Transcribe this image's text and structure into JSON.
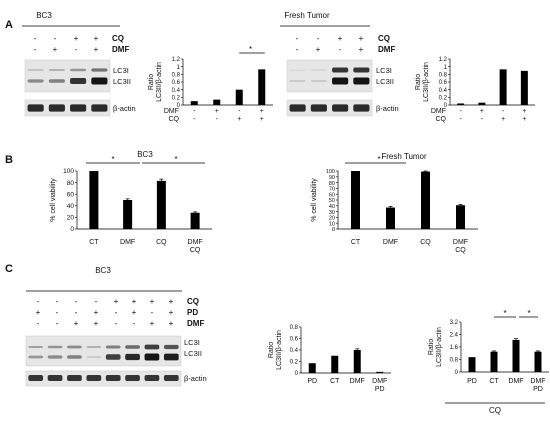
{
  "panels": [
    "A",
    "B",
    "C"
  ],
  "panel_A": {
    "left_title": "BC3",
    "right_title": "Fresh Tumor",
    "treat_rows": [
      {
        "label": "CQ",
        "signs": [
          "-",
          "-",
          "+",
          "+"
        ]
      },
      {
        "label": "DMF",
        "signs": [
          "-",
          "+",
          "-",
          "+"
        ]
      }
    ],
    "blot_labels": [
      "LC3I",
      "LC3II",
      "β-actin"
    ]
  },
  "panel_C": {
    "title": "BC3",
    "treat_rows": [
      {
        "label": "CQ",
        "signs": [
          "-",
          "-",
          "-",
          "-",
          "+",
          "+",
          "+",
          "+"
        ]
      },
      {
        "label": "PD",
        "signs": [
          "+",
          "-",
          "-",
          "+",
          "-",
          "+",
          "-",
          "+"
        ]
      },
      {
        "label": "DMF",
        "signs": [
          "-",
          "-",
          "+",
          "+",
          "-",
          "-",
          "+",
          "+"
        ]
      }
    ],
    "blot_labels": [
      "LC3I",
      "LC3II",
      "β-actin"
    ],
    "cq_group_label": "CQ"
  },
  "chart_data": [
    {
      "id": "A_left_quant",
      "type": "bar",
      "ylabel": "Ratio\nLC3II/β-actin",
      "yticks": [
        "0",
        "0.2",
        "0.4",
        "0.6",
        "0.8",
        "1",
        "1.2"
      ],
      "ylim": [
        0,
        1.2
      ],
      "values": [
        0.1,
        0.14,
        0.4,
        0.93
      ],
      "row_labels": [
        "DMF",
        "CQ"
      ],
      "row_signs": [
        [
          "-",
          "+",
          "-",
          "+"
        ],
        [
          "-",
          "-",
          "+",
          "+"
        ]
      ],
      "significance": "*"
    },
    {
      "id": "A_right_quant",
      "type": "bar",
      "ylabel": "Ratio\nLC3II/β-actin",
      "yticks": [
        "0",
        "0.2",
        "0.4",
        "0.6",
        "0.8",
        "1",
        "1.2"
      ],
      "ylim": [
        0,
        1.2
      ],
      "values": [
        0.04,
        0.06,
        0.93,
        0.89
      ],
      "row_labels": [
        "DMF",
        "CQ"
      ],
      "row_signs": [
        [
          "-",
          "+",
          "-",
          "+"
        ],
        [
          "-",
          "-",
          "+",
          "+"
        ]
      ]
    },
    {
      "id": "B_left",
      "type": "bar",
      "title": "BC3",
      "ylabel": "% cell viability",
      "yticks": [
        "0",
        "20",
        "40",
        "60",
        "80",
        "100"
      ],
      "ylim": [
        0,
        100
      ],
      "categories": [
        "CT",
        "DMF",
        "CQ",
        "DMF\nCQ"
      ],
      "values": [
        100,
        50,
        83,
        28
      ],
      "errors": [
        0,
        2,
        3,
        1.5
      ],
      "significance": [
        "*",
        "*"
      ]
    },
    {
      "id": "B_right",
      "type": "bar",
      "title": "Fresh Tumor",
      "ylabel": "% cell viability",
      "yticks": [
        "0",
        "10",
        "20",
        "30",
        "40",
        "50",
        "60",
        "70",
        "80",
        "90",
        "100"
      ],
      "ylim": [
        0,
        100
      ],
      "categories": [
        "CT",
        "DMF",
        "CQ",
        "DMF\nCQ"
      ],
      "values": [
        100,
        37,
        99,
        41
      ],
      "errors": [
        0,
        2,
        1,
        1.5
      ],
      "significance": "*"
    },
    {
      "id": "C_mid_quant",
      "type": "bar",
      "ylabel": "Ratio\nLC3II/β-actin",
      "yticks": [
        "0",
        "0.2",
        "0.4",
        "0.6",
        "0.8"
      ],
      "ylim": [
        0,
        0.8
      ],
      "categories": [
        "PD",
        "CT",
        "DMF",
        "DMF\nPD"
      ],
      "values": [
        0.17,
        0.3,
        0.4,
        0.02
      ],
      "errors": [
        0,
        0,
        0.02,
        0
      ]
    },
    {
      "id": "C_right_quant",
      "type": "bar",
      "ylabel": "Ratio\nLC3II/β-actin",
      "yticks": [
        "0",
        "0.8",
        "1.6",
        "2.4",
        "3.2"
      ],
      "ylim": [
        0,
        3.2
      ],
      "categories": [
        "PD",
        "CT",
        "DMF",
        "DMF\nPD"
      ],
      "values": [
        0.95,
        1.3,
        2.05,
        1.3
      ],
      "errors": [
        0,
        0.05,
        0.08,
        0.05
      ],
      "significance": [
        "*",
        "*"
      ],
      "group_label": "CQ"
    }
  ]
}
